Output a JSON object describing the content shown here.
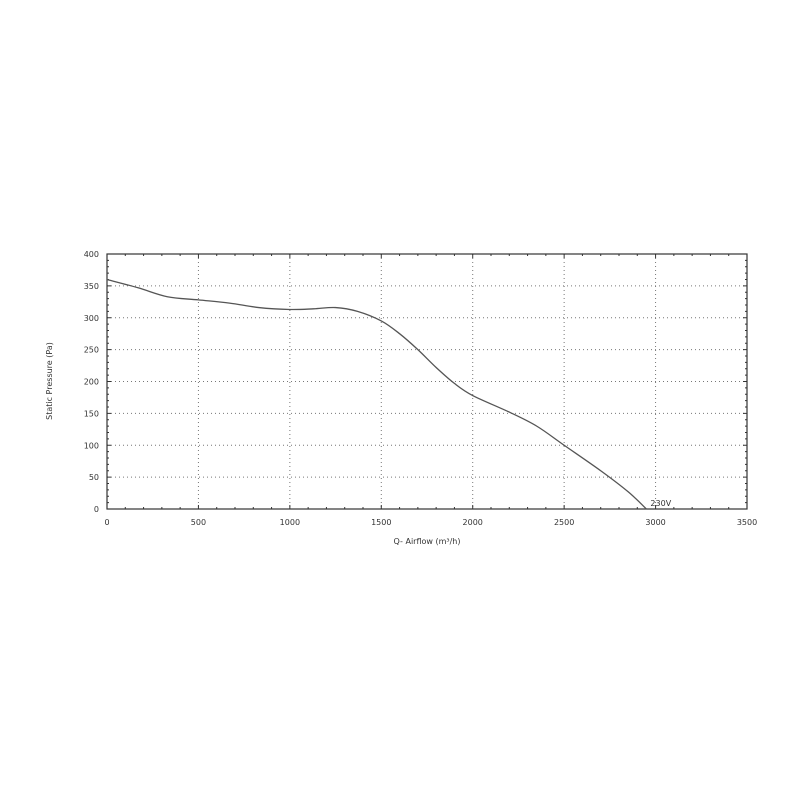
{
  "chart_data": {
    "type": "line",
    "title": "",
    "xlabel": "Q- Airflow (m³/h)",
    "ylabel": "Static Pressure (Pa)",
    "xlim": [
      0,
      3500
    ],
    "ylim": [
      0,
      400
    ],
    "x_ticks": [
      "0",
      "500",
      "1000",
      "1500",
      "2000",
      "2500",
      "3000",
      "3500"
    ],
    "y_ticks": [
      "0",
      "50",
      "100",
      "150",
      "200",
      "250",
      "300",
      "350",
      "400"
    ],
    "grid": true,
    "line_color": "#555555",
    "series": [
      {
        "annotation": "230V",
        "x": [
          0,
          170,
          330,
          500,
          670,
          830,
          1000,
          1130,
          1250,
          1370,
          1500,
          1600,
          1700,
          1800,
          1900,
          2000,
          2200,
          2350,
          2500,
          2700,
          2850,
          2950
        ],
        "y": [
          360,
          347,
          333,
          328,
          323,
          316,
          313,
          314,
          316,
          310,
          295,
          275,
          250,
          222,
          197,
          178,
          152,
          130,
          100,
          60,
          27,
          0
        ]
      }
    ]
  }
}
